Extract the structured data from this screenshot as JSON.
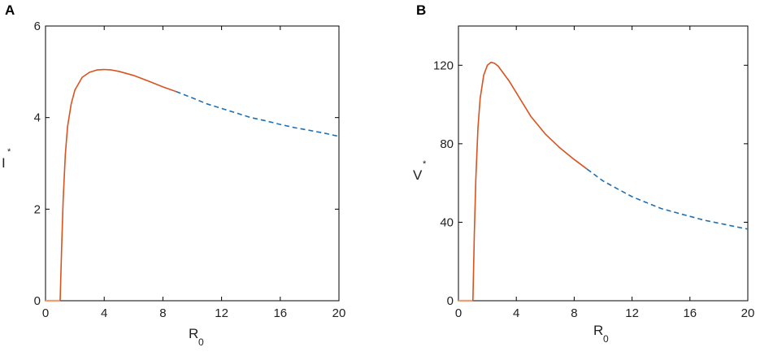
{
  "colors": {
    "stable": "#d9531e",
    "unstable": "#1f6fb2",
    "zero_line": "#f0a070",
    "axis": "#000000"
  },
  "chart_data": [
    {
      "type": "line",
      "panel_label": "A",
      "xlabel_main": "R",
      "xlabel_sub": "0",
      "ylabel_main": "I",
      "ylabel_sup": "*",
      "xlim": [
        0,
        20
      ],
      "ylim": [
        0,
        6
      ],
      "xticks": [
        "0",
        "4",
        "8",
        "12",
        "16",
        "20"
      ],
      "yticks": [
        "0",
        "2",
        "4",
        "6"
      ],
      "grid": false,
      "series": [
        {
          "style": "zero",
          "x": [
            0,
            1
          ],
          "y": [
            0,
            0
          ]
        },
        {
          "style": "solid",
          "x": [
            1.0,
            1.1,
            1.2,
            1.35,
            1.5,
            1.75,
            2.0,
            2.5,
            3.0,
            3.5,
            4.0,
            4.5,
            5.0,
            6.0,
            7.0,
            8.0,
            8.9
          ],
          "y": [
            0.0,
            1.2,
            2.2,
            3.2,
            3.8,
            4.3,
            4.6,
            4.88,
            4.99,
            5.04,
            5.05,
            5.04,
            5.01,
            4.92,
            4.8,
            4.67,
            4.57
          ]
        },
        {
          "style": "dashed",
          "x": [
            8.9,
            10,
            11,
            12,
            13,
            14,
            15,
            16,
            17,
            18,
            19,
            20
          ],
          "y": [
            4.57,
            4.43,
            4.3,
            4.2,
            4.1,
            4.0,
            3.93,
            3.85,
            3.78,
            3.72,
            3.66,
            3.59
          ]
        }
      ]
    },
    {
      "type": "line",
      "panel_label": "B",
      "xlabel_main": "R",
      "xlabel_sub": "0",
      "ylabel_main": "V",
      "ylabel_sup": "*",
      "xlim": [
        0,
        20
      ],
      "ylim": [
        0,
        140
      ],
      "xticks": [
        "0",
        "4",
        "8",
        "12",
        "16",
        "20"
      ],
      "yticks": [
        "0",
        "40",
        "80",
        "120"
      ],
      "grid": false,
      "series": [
        {
          "style": "zero",
          "x": [
            0,
            1
          ],
          "y": [
            0,
            0
          ]
        },
        {
          "style": "solid",
          "x": [
            1.0,
            1.1,
            1.2,
            1.35,
            1.5,
            1.75,
            2.0,
            2.25,
            2.5,
            2.75,
            3.0,
            3.5,
            4.0,
            4.5,
            5.0,
            6.0,
            7.0,
            8.0,
            8.9
          ],
          "y": [
            0,
            35,
            62,
            88,
            103,
            115,
            120,
            121.5,
            121,
            119.5,
            117,
            112,
            106,
            100,
            94,
            85,
            78,
            72,
            67
          ]
        },
        {
          "style": "dashed",
          "x": [
            8.9,
            10,
            11,
            12,
            13,
            14,
            15,
            16,
            17,
            18,
            19,
            20
          ],
          "y": [
            67,
            61,
            57,
            53,
            50,
            47,
            45,
            43,
            41,
            39.5,
            38,
            36.5
          ]
        }
      ]
    }
  ]
}
